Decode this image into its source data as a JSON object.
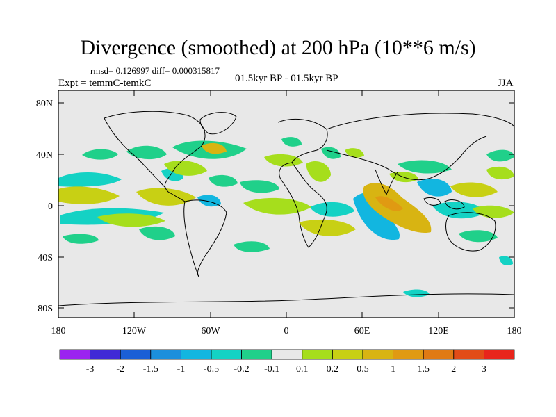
{
  "title": "Divergence (smoothed) at 200 hPa (10**6 m/s)",
  "stats": "rmsd= 0.126997 diff= 0.000315817",
  "experiment": "Expt = temmC-temkC",
  "period": "01.5kyr BP - 01.5kyr BP",
  "season": "JJA",
  "axes": {
    "lat_labels": [
      "80N",
      "40N",
      "0",
      "40S",
      "80S"
    ],
    "lon_labels": [
      "180",
      "120W",
      "60W",
      "0",
      "60E",
      "120E",
      "180"
    ]
  },
  "colorbar": {
    "colors": [
      "#9b23f0",
      "#4029d6",
      "#1a5fd6",
      "#1c8fdc",
      "#12b6e0",
      "#14d2c4",
      "#20d08a",
      "#e8e8e8",
      "#a6de1c",
      "#c8d014",
      "#d8b412",
      "#e09a12",
      "#e07a14",
      "#e24c18",
      "#e8251c"
    ],
    "labels": [
      "-3",
      "-2",
      "-1.5",
      "-1",
      "-0.5",
      "-0.2",
      "-0.1",
      "0.1",
      "0.2",
      "0.5",
      "1",
      "1.5",
      "2",
      "3"
    ]
  }
}
